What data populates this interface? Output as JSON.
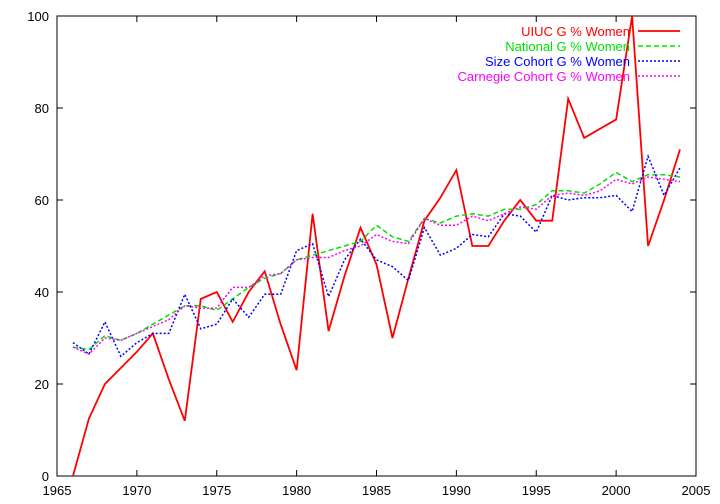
{
  "chart_data": {
    "type": "line",
    "title": "",
    "xlabel": "",
    "ylabel": "",
    "xlim": [
      1965,
      2005
    ],
    "ylim": [
      0,
      100
    ],
    "xticks": [
      1965,
      1970,
      1975,
      1980,
      1985,
      1990,
      1995,
      2000,
      2005
    ],
    "yticks": [
      0,
      20,
      40,
      60,
      80,
      100
    ],
    "grid": false,
    "legend_position": "top-right",
    "x": [
      1966,
      1967,
      1968,
      1969,
      1970,
      1971,
      1972,
      1973,
      1974,
      1975,
      1976,
      1977,
      1978,
      1979,
      1980,
      1981,
      1982,
      1983,
      1984,
      1985,
      1986,
      1987,
      1988,
      1989,
      1990,
      1991,
      1992,
      1993,
      1994,
      1995,
      1996,
      1997,
      1998,
      1999,
      2000,
      2001,
      2002,
      2003,
      2004
    ],
    "series": [
      {
        "name": "UIUC G % Women",
        "color": "#ff0000",
        "dash": "solid",
        "values": [
          0,
          12.5,
          20,
          23.5,
          27,
          31,
          21,
          12,
          38.5,
          40,
          33.5,
          40,
          44.5,
          33,
          23,
          57,
          31.5,
          43.5,
          54,
          46,
          30,
          43,
          55.5,
          60.5,
          66.5,
          50,
          50,
          55.5,
          60,
          55.5,
          55.5,
          82,
          73.5,
          75.5,
          77.5,
          100,
          50,
          60,
          71
        ]
      },
      {
        "name": "National G % Women",
        "color": "#00e000",
        "dash": "dashed",
        "values": [
          28,
          27.5,
          30.5,
          29.5,
          31,
          33,
          35,
          37,
          37,
          36,
          38.5,
          41,
          43,
          44,
          47,
          48,
          49,
          50,
          51,
          54.5,
          52,
          51,
          56,
          55,
          56.5,
          57,
          56.5,
          58,
          58,
          59,
          62,
          62,
          61.5,
          63.5,
          66,
          64,
          65.5,
          65.5,
          65
        ]
      },
      {
        "name": "Size Cohort G % Women",
        "color": "#0000ff",
        "dash": "dotted",
        "values": [
          29,
          26.5,
          33.5,
          26,
          29,
          31,
          31,
          39.5,
          32,
          33,
          38.5,
          34.5,
          39.5,
          39.5,
          49,
          50.5,
          39,
          47,
          51.5,
          47,
          45.5,
          42.5,
          54,
          48,
          49.5,
          52.5,
          52,
          57,
          56.5,
          53,
          61,
          60,
          60.5,
          60.5,
          61,
          57.5,
          69.5,
          61,
          67
        ]
      },
      {
        "name": "Carnegie Cohort G % Women",
        "color": "#ff00ff",
        "dash": "dotted",
        "values": [
          28,
          26.5,
          30,
          29.5,
          31,
          32.5,
          34,
          37,
          36.5,
          36.5,
          41,
          41,
          43.5,
          44,
          47,
          47.5,
          47.5,
          49,
          50,
          52.5,
          51,
          50.5,
          56,
          54.5,
          54.5,
          56.5,
          55.5,
          57,
          58.5,
          58,
          61,
          61.5,
          61,
          62,
          64.5,
          63.5,
          65,
          64.5,
          64
        ]
      }
    ]
  }
}
